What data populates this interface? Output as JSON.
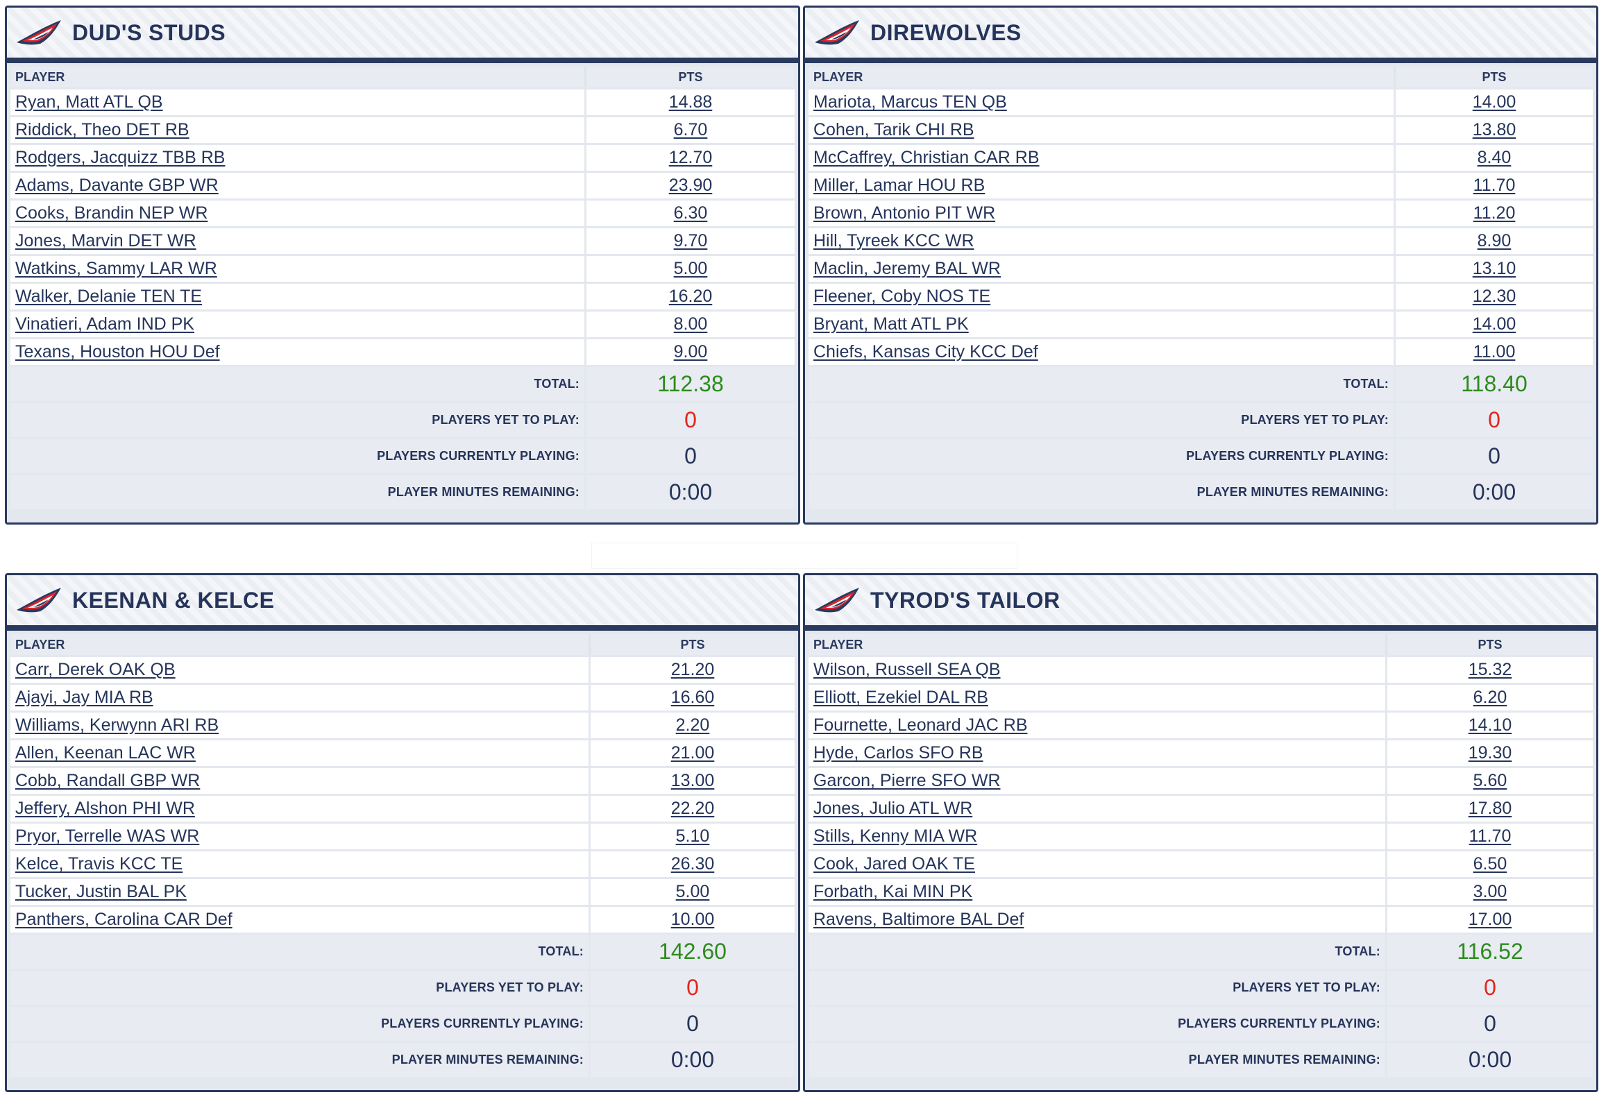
{
  "labels": {
    "player": "PLAYER",
    "pts": "PTS",
    "total": "TOTAL:",
    "yet": "PLAYERS YET TO PLAY:",
    "current": "PLAYERS CURRENTLY PLAYING:",
    "minutes": "PLAYER MINUTES REMAINING:"
  },
  "colors": {
    "navy": "#2a3a5e",
    "total_green": "#2d8a1e",
    "yet_red": "#e2261c",
    "logo_red": "#d7262e"
  },
  "teams": [
    {
      "name": "DUD'S STUDS",
      "players": [
        {
          "name": "Ryan, Matt ATL QB",
          "pts": "14.88"
        },
        {
          "name": "Riddick, Theo DET RB",
          "pts": "6.70"
        },
        {
          "name": "Rodgers, Jacquizz TBB RB",
          "pts": "12.70"
        },
        {
          "name": "Adams, Davante GBP WR",
          "pts": "23.90"
        },
        {
          "name": "Cooks, Brandin NEP WR",
          "pts": "6.30"
        },
        {
          "name": "Jones, Marvin DET WR",
          "pts": "9.70"
        },
        {
          "name": "Watkins, Sammy LAR WR",
          "pts": "5.00"
        },
        {
          "name": "Walker, Delanie TEN TE",
          "pts": "16.20"
        },
        {
          "name": "Vinatieri, Adam IND PK",
          "pts": "8.00"
        },
        {
          "name": "Texans, Houston HOU Def",
          "pts": "9.00"
        }
      ],
      "total": "112.38",
      "yet": "0",
      "current": "0",
      "minutes": "0:00"
    },
    {
      "name": "DIREWOLVES",
      "players": [
        {
          "name": "Mariota, Marcus TEN QB",
          "pts": "14.00"
        },
        {
          "name": "Cohen, Tarik CHI RB",
          "pts": "13.80"
        },
        {
          "name": "McCaffrey, Christian CAR RB",
          "pts": "8.40"
        },
        {
          "name": "Miller, Lamar HOU RB",
          "pts": "11.70"
        },
        {
          "name": "Brown, Antonio PIT WR",
          "pts": "11.20"
        },
        {
          "name": "Hill, Tyreek KCC WR",
          "pts": "8.90"
        },
        {
          "name": "Maclin, Jeremy BAL WR",
          "pts": "13.10"
        },
        {
          "name": "Fleener, Coby NOS TE",
          "pts": "12.30"
        },
        {
          "name": "Bryant, Matt ATL PK",
          "pts": "14.00"
        },
        {
          "name": "Chiefs, Kansas City KCC Def",
          "pts": "11.00"
        }
      ],
      "total": "118.40",
      "yet": "0",
      "current": "0",
      "minutes": "0:00"
    },
    {
      "name": "KEENAN & KELCE",
      "players": [
        {
          "name": "Carr, Derek OAK QB",
          "pts": "21.20"
        },
        {
          "name": "Ajayi, Jay MIA RB",
          "pts": "16.60"
        },
        {
          "name": "Williams, Kerwynn ARI RB",
          "pts": "2.20"
        },
        {
          "name": "Allen, Keenan LAC WR",
          "pts": "21.00"
        },
        {
          "name": "Cobb, Randall GBP WR",
          "pts": "13.00"
        },
        {
          "name": "Jeffery, Alshon PHI WR",
          "pts": "22.20"
        },
        {
          "name": "Pryor, Terrelle WAS WR",
          "pts": "5.10"
        },
        {
          "name": "Kelce, Travis KCC TE",
          "pts": "26.30"
        },
        {
          "name": "Tucker, Justin BAL PK",
          "pts": "5.00"
        },
        {
          "name": "Panthers, Carolina CAR Def",
          "pts": "10.00"
        }
      ],
      "total": "142.60",
      "yet": "0",
      "current": "0",
      "minutes": "0:00"
    },
    {
      "name": "TYROD'S TAILOR",
      "players": [
        {
          "name": "Wilson, Russell SEA QB",
          "pts": "15.32"
        },
        {
          "name": "Elliott, Ezekiel DAL RB",
          "pts": "6.20"
        },
        {
          "name": "Fournette, Leonard JAC RB",
          "pts": "14.10"
        },
        {
          "name": "Hyde, Carlos SFO RB",
          "pts": "19.30"
        },
        {
          "name": "Garcon, Pierre SFO WR",
          "pts": "5.60"
        },
        {
          "name": "Jones, Julio ATL WR",
          "pts": "17.80"
        },
        {
          "name": "Stills, Kenny MIA WR",
          "pts": "11.70"
        },
        {
          "name": "Cook, Jared OAK TE",
          "pts": "6.50"
        },
        {
          "name": "Forbath, Kai MIN PK",
          "pts": "3.00"
        },
        {
          "name": "Ravens, Baltimore BAL Def",
          "pts": "17.00"
        }
      ],
      "total": "116.52",
      "yet": "0",
      "current": "0",
      "minutes": "0:00"
    }
  ]
}
